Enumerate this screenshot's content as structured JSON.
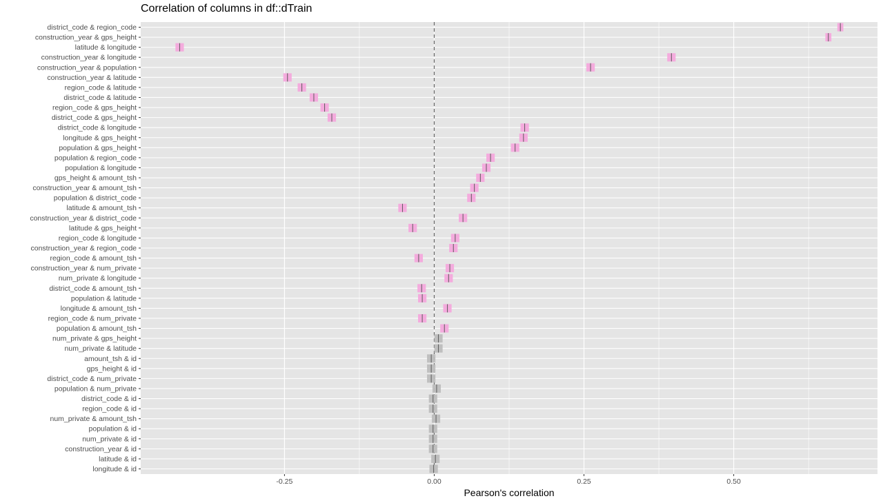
{
  "chart_data": {
    "type": "scatter",
    "title": "Correlation of columns in df::dTrain",
    "xlabel": "Pearson's correlation",
    "ylabel": "",
    "xlim": [
      -0.49,
      0.74
    ],
    "x_ticks": [
      -0.25,
      0.0,
      0.25,
      0.5
    ],
    "x_tick_labels": [
      "-0.25",
      "0.00",
      "0.25",
      "0.50"
    ],
    "reference_line": 0.0,
    "grid": true,
    "legend": "none",
    "colors": {
      "significant": "#f4a8dc",
      "not_significant": "#bdbdbd",
      "mark": "#5a5a5a",
      "panel": "#e5e5e5",
      "grid": "#ffffff"
    },
    "points": [
      {
        "label": "district_code & region_code",
        "value": 0.678,
        "low": 0.673,
        "high": 0.683,
        "significant": true
      },
      {
        "label": "construction_year & gps_height",
        "value": 0.658,
        "low": 0.653,
        "high": 0.663,
        "significant": true
      },
      {
        "label": "latitude & longitude",
        "value": -0.425,
        "low": -0.432,
        "high": -0.418,
        "significant": true
      },
      {
        "label": "construction_year & longitude",
        "value": 0.396,
        "low": 0.389,
        "high": 0.403,
        "significant": true
      },
      {
        "label": "construction_year & population",
        "value": 0.261,
        "low": 0.254,
        "high": 0.268,
        "significant": true
      },
      {
        "label": "construction_year & latitude",
        "value": -0.245,
        "low": -0.252,
        "high": -0.238,
        "significant": true
      },
      {
        "label": "region_code & latitude",
        "value": -0.221,
        "low": -0.228,
        "high": -0.214,
        "significant": true
      },
      {
        "label": "district_code & latitude",
        "value": -0.201,
        "low": -0.208,
        "high": -0.194,
        "significant": true
      },
      {
        "label": "region_code & gps_height",
        "value": -0.183,
        "low": -0.19,
        "high": -0.176,
        "significant": true
      },
      {
        "label": "district_code & gps_height",
        "value": -0.171,
        "low": -0.178,
        "high": -0.164,
        "significant": true
      },
      {
        "label": "district_code & longitude",
        "value": 0.151,
        "low": 0.144,
        "high": 0.158,
        "significant": true
      },
      {
        "label": "longitude & gps_height",
        "value": 0.149,
        "low": 0.142,
        "high": 0.156,
        "significant": true
      },
      {
        "label": "population & gps_height",
        "value": 0.135,
        "low": 0.128,
        "high": 0.142,
        "significant": true
      },
      {
        "label": "population & region_code",
        "value": 0.094,
        "low": 0.087,
        "high": 0.101,
        "significant": true
      },
      {
        "label": "population & longitude",
        "value": 0.087,
        "low": 0.08,
        "high": 0.094,
        "significant": true
      },
      {
        "label": "gps_height & amount_tsh",
        "value": 0.077,
        "low": 0.07,
        "high": 0.084,
        "significant": true
      },
      {
        "label": "construction_year & amount_tsh",
        "value": 0.067,
        "low": 0.06,
        "high": 0.074,
        "significant": true
      },
      {
        "label": "population & district_code",
        "value": 0.062,
        "low": 0.055,
        "high": 0.069,
        "significant": true
      },
      {
        "label": "latitude & amount_tsh",
        "value": -0.053,
        "low": -0.06,
        "high": -0.046,
        "significant": true
      },
      {
        "label": "construction_year & district_code",
        "value": 0.048,
        "low": 0.041,
        "high": 0.055,
        "significant": true
      },
      {
        "label": "latitude & gps_height",
        "value": -0.036,
        "low": -0.043,
        "high": -0.029,
        "significant": true
      },
      {
        "label": "region_code & longitude",
        "value": 0.035,
        "low": 0.028,
        "high": 0.042,
        "significant": true
      },
      {
        "label": "construction_year & region_code",
        "value": 0.032,
        "low": 0.025,
        "high": 0.039,
        "significant": true
      },
      {
        "label": "region_code & amount_tsh",
        "value": -0.026,
        "low": -0.033,
        "high": -0.019,
        "significant": true
      },
      {
        "label": "construction_year & num_private",
        "value": 0.026,
        "low": 0.019,
        "high": 0.033,
        "significant": true
      },
      {
        "label": "num_private & longitude",
        "value": 0.024,
        "low": 0.017,
        "high": 0.031,
        "significant": true
      },
      {
        "label": "district_code & amount_tsh",
        "value": -0.021,
        "low": -0.028,
        "high": -0.014,
        "significant": true
      },
      {
        "label": "population & latitude",
        "value": -0.02,
        "low": -0.027,
        "high": -0.013,
        "significant": true
      },
      {
        "label": "longitude & amount_tsh",
        "value": 0.022,
        "low": 0.015,
        "high": 0.029,
        "significant": true
      },
      {
        "label": "region_code & num_private",
        "value": -0.02,
        "low": -0.027,
        "high": -0.013,
        "significant": true
      },
      {
        "label": "population & amount_tsh",
        "value": 0.017,
        "low": 0.01,
        "high": 0.024,
        "significant": true
      },
      {
        "label": "num_private & gps_height",
        "value": 0.007,
        "low": 0.0,
        "high": 0.014,
        "significant": false
      },
      {
        "label": "num_private & latitude",
        "value": 0.007,
        "low": 0.0,
        "high": 0.014,
        "significant": false
      },
      {
        "label": "amount_tsh & id",
        "value": -0.005,
        "low": -0.012,
        "high": 0.002,
        "significant": false
      },
      {
        "label": "gps_height & id",
        "value": -0.005,
        "low": -0.012,
        "high": 0.002,
        "significant": false
      },
      {
        "label": "district_code & num_private",
        "value": -0.005,
        "low": -0.012,
        "high": 0.002,
        "significant": false
      },
      {
        "label": "population & num_private",
        "value": 0.004,
        "low": -0.003,
        "high": 0.011,
        "significant": false
      },
      {
        "label": "district_code & id",
        "value": -0.002,
        "low": -0.009,
        "high": 0.005,
        "significant": false
      },
      {
        "label": "region_code & id",
        "value": -0.002,
        "low": -0.009,
        "high": 0.005,
        "significant": false
      },
      {
        "label": "num_private & amount_tsh",
        "value": 0.003,
        "low": -0.004,
        "high": 0.01,
        "significant": false
      },
      {
        "label": "population & id",
        "value": -0.002,
        "low": -0.009,
        "high": 0.005,
        "significant": false
      },
      {
        "label": "num_private & id",
        "value": -0.002,
        "low": -0.009,
        "high": 0.005,
        "significant": false
      },
      {
        "label": "construction_year & id",
        "value": -0.002,
        "low": -0.009,
        "high": 0.005,
        "significant": false
      },
      {
        "label": "latitude & id",
        "value": 0.002,
        "low": -0.005,
        "high": 0.009,
        "significant": false
      },
      {
        "label": "longitude & id",
        "value": -0.001,
        "low": -0.008,
        "high": 0.006,
        "significant": false
      }
    ]
  }
}
